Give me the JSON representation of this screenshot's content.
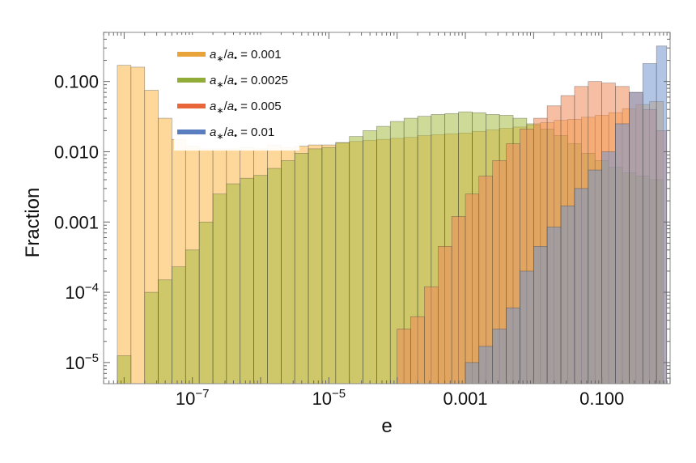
{
  "chart_data": {
    "type": "bar",
    "xlabel": "e",
    "ylabel": "Fraction",
    "x_scale": "log",
    "y_scale": "log",
    "xlim": [
      5e-09,
      1
    ],
    "ylim": [
      5e-06,
      0.5
    ],
    "x_ticks": [
      {
        "value": 1e-07,
        "base": "10",
        "exp": "−7"
      },
      {
        "value": 1e-05,
        "base": "10",
        "exp": "−5"
      },
      {
        "value": 0.001,
        "label": "0.001"
      },
      {
        "value": 0.1,
        "label": "0.100"
      }
    ],
    "y_ticks": [
      {
        "value": 0.1,
        "label": "0.100"
      },
      {
        "value": 0.01,
        "label": "0.010"
      },
      {
        "value": 0.001,
        "label": "0.001"
      },
      {
        "value": 0.0001,
        "base": "10",
        "exp": "−4"
      },
      {
        "value": 1e-05,
        "base": "10",
        "exp": "−5"
      }
    ],
    "legend_position": "top-left",
    "series": [
      {
        "name": "a∗/a• = 0.001",
        "legend_label": {
          "a1": "a",
          "sub1": "∗",
          "slash": "/",
          "a2": "a",
          "sub2": "•",
          "rest": " = 0.001"
        },
        "color": "#E8A33A",
        "fill": "#FDC870",
        "opacity": 0.7,
        "bins": [
          [
            7.94e-09,
            1.26e-08,
            0.17
          ],
          [
            1.26e-08,
            2e-08,
            0.16
          ],
          [
            2e-08,
            3.16e-08,
            0.075
          ],
          [
            3.16e-08,
            5.01e-08,
            0.03
          ],
          [
            5.01e-08,
            7.94e-08,
            0.015
          ],
          [
            7.94e-08,
            1.26e-07,
            0.012
          ],
          [
            1.26e-07,
            2e-07,
            0.011
          ],
          [
            2e-07,
            3.16e-07,
            0.011
          ],
          [
            3.16e-07,
            5.01e-07,
            0.011
          ],
          [
            5.01e-07,
            7.94e-07,
            0.0115
          ],
          [
            7.94e-07,
            1.26e-06,
            0.011
          ],
          [
            1.26e-06,
            2e-06,
            0.0125
          ],
          [
            2e-06,
            3.16e-06,
            0.0115
          ],
          [
            3.16e-06,
            5.01e-06,
            0.012
          ],
          [
            5.01e-06,
            7.94e-06,
            0.0125
          ],
          [
            7.94e-06,
            1.26e-05,
            0.0125
          ],
          [
            1.26e-05,
            2e-05,
            0.0135
          ],
          [
            2e-05,
            3.16e-05,
            0.014
          ],
          [
            3.16e-05,
            5.01e-05,
            0.0145
          ],
          [
            5.01e-05,
            7.94e-05,
            0.015
          ],
          [
            7.94e-05,
            0.000126,
            0.0155
          ],
          [
            0.000126,
            0.0002,
            0.016
          ],
          [
            0.0002,
            0.000316,
            0.017
          ],
          [
            0.000316,
            0.000501,
            0.0175
          ],
          [
            0.000501,
            0.000794,
            0.018
          ],
          [
            0.000794,
            0.00126,
            0.0185
          ],
          [
            0.00126,
            0.002,
            0.0195
          ],
          [
            0.002,
            0.00316,
            0.0205
          ],
          [
            0.00316,
            0.00501,
            0.0215
          ],
          [
            0.00501,
            0.00794,
            0.0225
          ],
          [
            0.00794,
            0.0126,
            0.024
          ],
          [
            0.0126,
            0.02,
            0.026
          ],
          [
            0.02,
            0.0316,
            0.028
          ],
          [
            0.0316,
            0.0501,
            0.029
          ],
          [
            0.0501,
            0.0794,
            0.031
          ],
          [
            0.0794,
            0.126,
            0.033
          ],
          [
            0.126,
            0.2,
            0.036
          ],
          [
            0.2,
            0.316,
            0.041
          ],
          [
            0.316,
            0.501,
            0.047
          ],
          [
            0.501,
            0.794,
            0.052
          ]
        ]
      },
      {
        "name": "a∗/a• = 0.0025",
        "legend_label": {
          "a1": "a",
          "sub1": "∗",
          "slash": "/",
          "a2": "a",
          "sub2": "•",
          "rest": " = 0.0025"
        },
        "color": "#92AC3A",
        "fill": "#A6BC42",
        "opacity": 0.55,
        "bins": [
          [
            7.94e-09,
            1.26e-08,
            1.25e-05
          ],
          [
            2e-08,
            3.16e-08,
            0.0001
          ],
          [
            3.16e-08,
            5.01e-08,
            0.00015
          ],
          [
            5.01e-08,
            7.94e-08,
            0.00023
          ],
          [
            7.94e-08,
            1.26e-07,
            0.0004
          ],
          [
            1.26e-07,
            2e-07,
            0.001
          ],
          [
            2e-07,
            3.16e-07,
            0.0025
          ],
          [
            3.16e-07,
            5.01e-07,
            0.0035
          ],
          [
            5.01e-07,
            7.94e-07,
            0.0042
          ],
          [
            7.94e-07,
            1.26e-06,
            0.0046
          ],
          [
            1.26e-06,
            2e-06,
            0.0058
          ],
          [
            2e-06,
            3.16e-06,
            0.0075
          ],
          [
            3.16e-06,
            5.01e-06,
            0.0095
          ],
          [
            5.01e-06,
            7.94e-06,
            0.011
          ],
          [
            7.94e-06,
            1.26e-05,
            0.0115
          ],
          [
            1.26e-05,
            2e-05,
            0.0135
          ],
          [
            2e-05,
            3.16e-05,
            0.0165
          ],
          [
            3.16e-05,
            5.01e-05,
            0.02
          ],
          [
            5.01e-05,
            7.94e-05,
            0.023
          ],
          [
            7.94e-05,
            0.000126,
            0.027
          ],
          [
            0.000126,
            0.0002,
            0.03
          ],
          [
            0.0002,
            0.000316,
            0.032
          ],
          [
            0.000316,
            0.000501,
            0.034
          ],
          [
            0.000501,
            0.000794,
            0.035
          ],
          [
            0.000794,
            0.00126,
            0.037
          ],
          [
            0.00126,
            0.002,
            0.036
          ],
          [
            0.002,
            0.00316,
            0.034
          ],
          [
            0.00316,
            0.00501,
            0.033
          ],
          [
            0.00501,
            0.00794,
            0.03
          ],
          [
            0.00794,
            0.0126,
            0.025
          ],
          [
            0.0126,
            0.02,
            0.021
          ],
          [
            0.02,
            0.0316,
            0.017
          ],
          [
            0.0316,
            0.0501,
            0.013
          ],
          [
            0.0501,
            0.0794,
            0.0095
          ],
          [
            0.0794,
            0.126,
            0.0075
          ],
          [
            0.126,
            0.2,
            0.006
          ],
          [
            0.2,
            0.316,
            0.005
          ],
          [
            0.316,
            0.501,
            0.0045
          ],
          [
            0.501,
            0.794,
            0.004
          ]
        ]
      },
      {
        "name": "a∗/a• = 0.005",
        "legend_label": {
          "a1": "a",
          "sub1": "∗",
          "slash": "/",
          "a2": "a",
          "sub2": "•",
          "rest": " = 0.005"
        },
        "color": "#E8663A",
        "fill": "#EE8858",
        "opacity": 0.55,
        "bins": [
          [
            0.0001,
            0.000158,
            3e-05
          ],
          [
            0.000158,
            0.000251,
            4.5e-05
          ],
          [
            0.000251,
            0.000398,
            0.00012
          ],
          [
            0.000398,
            0.000631,
            0.00045
          ],
          [
            0.000631,
            0.001,
            0.0012
          ],
          [
            0.001,
            0.00158,
            0.0025
          ],
          [
            0.00158,
            0.00251,
            0.0045
          ],
          [
            0.00251,
            0.00398,
            0.0075
          ],
          [
            0.00398,
            0.00631,
            0.013
          ],
          [
            0.00631,
            0.01,
            0.021
          ],
          [
            0.01,
            0.0158,
            0.03
          ],
          [
            0.0158,
            0.0251,
            0.045
          ],
          [
            0.0251,
            0.0398,
            0.063
          ],
          [
            0.0398,
            0.0631,
            0.085
          ],
          [
            0.0631,
            0.1,
            0.1
          ],
          [
            0.1,
            0.158,
            0.095
          ],
          [
            0.158,
            0.251,
            0.085
          ],
          [
            0.251,
            0.398,
            0.07
          ],
          [
            0.398,
            0.631,
            0.04
          ],
          [
            0.631,
            0.891,
            0.02
          ]
        ]
      },
      {
        "name": "a∗/a• = 0.01",
        "legend_label": {
          "a1": "a",
          "sub1": "∗",
          "slash": "/",
          "a2": "a",
          "sub2": "•",
          "rest": " = 0.01"
        },
        "color": "#5A7DC0",
        "fill": "#7495CD",
        "opacity": 0.55,
        "bins": [
          [
            0.001,
            0.00158,
            1e-05
          ],
          [
            0.00158,
            0.00251,
            1.7e-05
          ],
          [
            0.00251,
            0.00398,
            3e-05
          ],
          [
            0.00398,
            0.00631,
            6e-05
          ],
          [
            0.00631,
            0.01,
            0.0002
          ],
          [
            0.01,
            0.0158,
            0.00045
          ],
          [
            0.0158,
            0.0251,
            0.00085
          ],
          [
            0.0251,
            0.0398,
            0.0017
          ],
          [
            0.0398,
            0.0631,
            0.003
          ],
          [
            0.0631,
            0.1,
            0.0055
          ],
          [
            0.1,
            0.158,
            0.01
          ],
          [
            0.158,
            0.251,
            0.025
          ],
          [
            0.251,
            0.398,
            0.07
          ],
          [
            0.398,
            0.631,
            0.18
          ],
          [
            0.631,
            0.891,
            0.32
          ]
        ]
      }
    ]
  }
}
